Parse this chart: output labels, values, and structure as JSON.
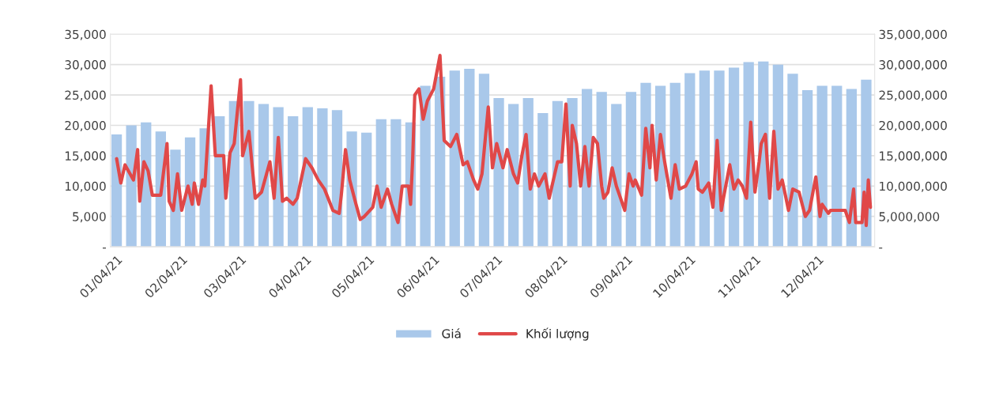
{
  "chart_data": {
    "type": "bar",
    "legend": "bottom",
    "grid": "y",
    "xlim": [
      "2021-01-01",
      "2021-12-31"
    ],
    "xticks": [
      {
        "value": "2021-01-04",
        "label": "01/04/21"
      },
      {
        "value": "2021-02-04",
        "label": "02/04/21"
      },
      {
        "value": "2021-03-04",
        "label": "03/04/21"
      },
      {
        "value": "2021-04-04",
        "label": "04/04/21"
      },
      {
        "value": "2021-05-04",
        "label": "05/04/21"
      },
      {
        "value": "2021-06-04",
        "label": "06/04/21"
      },
      {
        "value": "2021-07-04",
        "label": "07/04/21"
      },
      {
        "value": "2021-08-04",
        "label": "08/04/21"
      },
      {
        "value": "2021-09-04",
        "label": "09/04/21"
      },
      {
        "value": "2021-10-04",
        "label": "10/04/21"
      },
      {
        "value": "2021-11-04",
        "label": "11/04/21"
      },
      {
        "value": "2021-12-04",
        "label": "12/04/21"
      }
    ],
    "ylim": [
      0,
      35000
    ],
    "yticks": [
      {
        "value": 0,
        "label": "-"
      },
      {
        "value": 5000,
        "label": "5,000"
      },
      {
        "value": 10000,
        "label": "10,000"
      },
      {
        "value": 15000,
        "label": "15,000"
      },
      {
        "value": 20000,
        "label": "20,000"
      },
      {
        "value": 25000,
        "label": "25,000"
      },
      {
        "value": 30000,
        "label": "30,000"
      },
      {
        "value": 35000,
        "label": "35,000"
      }
    ],
    "y2lim": [
      0,
      35000000
    ],
    "y2ticks": [
      {
        "value": 0,
        "label": "-"
      },
      {
        "value": 5000000,
        "label": "5,000,000"
      },
      {
        "value": 10000000,
        "label": "10,000,000"
      },
      {
        "value": 15000000,
        "label": "15,000,000"
      },
      {
        "value": 20000000,
        "label": "20,000,000"
      },
      {
        "value": 25000000,
        "label": "25,000,000"
      },
      {
        "value": 30000000,
        "label": "30,000,000"
      },
      {
        "value": 35000000,
        "label": "35,000,000"
      }
    ],
    "series": [
      {
        "name": "Giá",
        "color": "#a9c8ea",
        "x": [
          "2021-01-04",
          "2021-01-11",
          "2021-01-18",
          "2021-01-25",
          "2021-02-01",
          "2021-02-08",
          "2021-02-15",
          "2021-02-22",
          "2021-03-01",
          "2021-03-08",
          "2021-03-15",
          "2021-03-22",
          "2021-03-29",
          "2021-04-05",
          "2021-04-12",
          "2021-04-19",
          "2021-04-26",
          "2021-05-03",
          "2021-05-10",
          "2021-05-17",
          "2021-05-24",
          "2021-05-31",
          "2021-06-07",
          "2021-06-14",
          "2021-06-21",
          "2021-06-28",
          "2021-07-05",
          "2021-07-12",
          "2021-07-19",
          "2021-07-26",
          "2021-08-02",
          "2021-08-09",
          "2021-08-16",
          "2021-08-23",
          "2021-08-30",
          "2021-09-06",
          "2021-09-13",
          "2021-09-20",
          "2021-09-27",
          "2021-10-04",
          "2021-10-11",
          "2021-10-18",
          "2021-10-25",
          "2021-11-01",
          "2021-11-08",
          "2021-11-15",
          "2021-11-22",
          "2021-11-29",
          "2021-12-06",
          "2021-12-13",
          "2021-12-20",
          "2021-12-27"
        ],
        "values": [
          18500,
          20000,
          20500,
          19000,
          16000,
          18000,
          19500,
          21500,
          24000,
          24000,
          23500,
          23000,
          21500,
          23000,
          22800,
          22500,
          19000,
          18800,
          21000,
          21000,
          20500,
          26500,
          28000,
          29000,
          29300,
          28500,
          24500,
          23500,
          24500,
          22000,
          24000,
          24500,
          26000,
          25500,
          23500,
          25500,
          27000,
          26500,
          27000,
          28600,
          29000,
          29000,
          29500,
          30400,
          30500,
          30000,
          28500,
          25800,
          26500,
          26500,
          26000,
          27500
        ]
      },
      {
        "name": "Khối lượng",
        "type": "line",
        "axis": "y2",
        "color": "#e04848",
        "line_style": "solid",
        "x": [
          "2021-01-04",
          "2021-01-06",
          "2021-01-08",
          "2021-01-12",
          "2021-01-14",
          "2021-01-15",
          "2021-01-17",
          "2021-01-19",
          "2021-01-21",
          "2021-01-25",
          "2021-01-28",
          "2021-01-29",
          "2021-01-31",
          "2021-02-02",
          "2021-02-04",
          "2021-02-07",
          "2021-02-09",
          "2021-02-10",
          "2021-02-12",
          "2021-02-14",
          "2021-02-15",
          "2021-02-18",
          "2021-02-20",
          "2021-02-24",
          "2021-02-25",
          "2021-02-27",
          "2021-03-01",
          "2021-03-04",
          "2021-03-05",
          "2021-03-08",
          "2021-03-11",
          "2021-03-14",
          "2021-03-18",
          "2021-03-20",
          "2021-03-22",
          "2021-03-24",
          "2021-03-26",
          "2021-03-29",
          "2021-03-31",
          "2021-04-04",
          "2021-04-07",
          "2021-04-10",
          "2021-04-13",
          "2021-04-17",
          "2021-04-20",
          "2021-04-21",
          "2021-04-23",
          "2021-04-25",
          "2021-04-28",
          "2021-04-30",
          "2021-05-02",
          "2021-05-06",
          "2021-05-08",
          "2021-05-10",
          "2021-05-13",
          "2021-05-15",
          "2021-05-18",
          "2021-05-20",
          "2021-05-23",
          "2021-05-24",
          "2021-05-25",
          "2021-05-26",
          "2021-05-28",
          "2021-05-30",
          "2021-06-01",
          "2021-06-04",
          "2021-06-07",
          "2021-06-09",
          "2021-06-12",
          "2021-06-15",
          "2021-06-18",
          "2021-06-20",
          "2021-06-23",
          "2021-06-25",
          "2021-06-27",
          "2021-06-30",
          "2021-07-02",
          "2021-07-04",
          "2021-07-07",
          "2021-07-09",
          "2021-07-12",
          "2021-07-14",
          "2021-07-16",
          "2021-07-18",
          "2021-07-20",
          "2021-07-22",
          "2021-07-24",
          "2021-07-27",
          "2021-07-29",
          "2021-07-31",
          "2021-08-02",
          "2021-08-04",
          "2021-08-06",
          "2021-08-08",
          "2021-08-09",
          "2021-08-11",
          "2021-08-13",
          "2021-08-15",
          "2021-08-17",
          "2021-08-19",
          "2021-08-21",
          "2021-08-23",
          "2021-08-24",
          "2021-08-26",
          "2021-08-28",
          "2021-08-30",
          "2021-09-01",
          "2021-09-03",
          "2021-09-05",
          "2021-09-07",
          "2021-09-08",
          "2021-09-11",
          "2021-09-13",
          "2021-09-15",
          "2021-09-16",
          "2021-09-18",
          "2021-09-20",
          "2021-09-22",
          "2021-09-24",
          "2021-09-25",
          "2021-09-27",
          "2021-09-29",
          "2021-10-02",
          "2021-10-05",
          "2021-10-07",
          "2021-10-08",
          "2021-10-10",
          "2021-10-13",
          "2021-10-15",
          "2021-10-17",
          "2021-10-19",
          "2021-10-20",
          "2021-10-23",
          "2021-10-25",
          "2021-10-27",
          "2021-10-29",
          "2021-10-31",
          "2021-11-02",
          "2021-11-04",
          "2021-11-06",
          "2021-11-07",
          "2021-11-09",
          "2021-11-11",
          "2021-11-13",
          "2021-11-15",
          "2021-11-17",
          "2021-11-20",
          "2021-11-22",
          "2021-11-25",
          "2021-11-28",
          "2021-11-30",
          "2021-12-03",
          "2021-12-05",
          "2021-12-06",
          "2021-12-09",
          "2021-12-10",
          "2021-12-13",
          "2021-12-17",
          "2021-12-19",
          "2021-12-21",
          "2021-12-22",
          "2021-12-25",
          "2021-12-26",
          "2021-12-27",
          "2021-12-28",
          "2021-12-29"
        ],
        "values": [
          14500000,
          10500000,
          13500000,
          11000000,
          16000000,
          7500000,
          14000000,
          12500000,
          8500000,
          8500000,
          17000000,
          7500000,
          6000000,
          12000000,
          6000000,
          10000000,
          7000000,
          10500000,
          7000000,
          11000000,
          10000000,
          26500000,
          15000000,
          15000000,
          8000000,
          15500000,
          17000000,
          27500000,
          15000000,
          19000000,
          8000000,
          9000000,
          14000000,
          8000000,
          18000000,
          7500000,
          8000000,
          7000000,
          8000000,
          14500000,
          13000000,
          11000000,
          9500000,
          6000000,
          5500000,
          8500000,
          16000000,
          11000000,
          7000000,
          4500000,
          5000000,
          6500000,
          10000000,
          6500000,
          9500000,
          7000000,
          4000000,
          10000000,
          10000000,
          7000000,
          14500000,
          25000000,
          26000000,
          21000000,
          24000000,
          26000000,
          31500000,
          17500000,
          16500000,
          18500000,
          13500000,
          14000000,
          11000000,
          9500000,
          12000000,
          23000000,
          13000000,
          17000000,
          13000000,
          16000000,
          12000000,
          10500000,
          15000000,
          18500000,
          9500000,
          12000000,
          10000000,
          12000000,
          8000000,
          11000000,
          14000000,
          14000000,
          23500000,
          10000000,
          20000000,
          17000000,
          10000000,
          16500000,
          10000000,
          18000000,
          17000000,
          10000000,
          8000000,
          9000000,
          13000000,
          10000000,
          8000000,
          6000000,
          12000000,
          10000000,
          11000000,
          8500000,
          19500000,
          13000000,
          20000000,
          11000000,
          18500000,
          14000000,
          10000000,
          8000000,
          13500000,
          9500000,
          10000000,
          12000000,
          14000000,
          9500000,
          9000000,
          10500000,
          6500000,
          17500000,
          6000000,
          8000000,
          13500000,
          9500000,
          11000000,
          10000000,
          8000000,
          20500000,
          9000000,
          14000000,
          17000000,
          18500000,
          8000000,
          19000000,
          9500000,
          11000000,
          6000000,
          9500000,
          9000000,
          5000000,
          6000000,
          11500000,
          5000000,
          7000000,
          5500000,
          6000000,
          6000000,
          6000000,
          4000000,
          9500000,
          4000000,
          4000000,
          9000000,
          3500000,
          11000000,
          6500000
        ]
      }
    ]
  }
}
